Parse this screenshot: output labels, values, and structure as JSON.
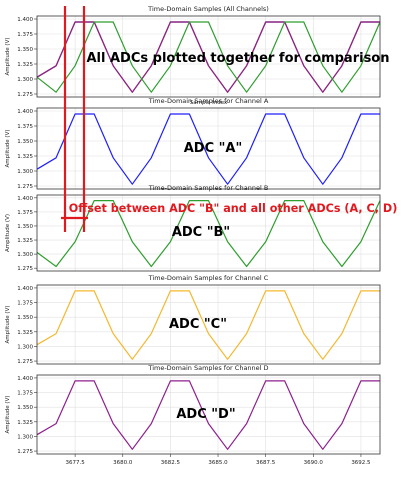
{
  "chart_data": [
    {
      "type": "line",
      "title": "Time-Domain Samples (All Channels)",
      "ylabel": "Amplitude (V)",
      "xlabel": "Sample Index",
      "ylim": [
        1.27,
        1.405
      ],
      "yticks": [
        1.275,
        1.3,
        1.325,
        1.35,
        1.375,
        1.4
      ],
      "ytick_labels": [
        "1.275",
        "1.300",
        "1.325",
        "1.350",
        "1.375",
        "1.400"
      ],
      "grid": true,
      "series": [
        {
          "color": "#1f1fff",
          "x": [
            3675.5,
            3676.5,
            3677.5,
            3678.5,
            3679.5,
            3680.5,
            3681.5,
            3682.5,
            3683.5,
            3684.5,
            3685.5,
            3686.5,
            3687.5,
            3688.5,
            3689.5,
            3690.5,
            3691.5,
            3692.5,
            3693.5
          ],
          "values": [
            1.303,
            1.322,
            1.395,
            1.395,
            1.322,
            1.278,
            1.322,
            1.395,
            1.395,
            1.322,
            1.278,
            1.322,
            1.395,
            1.395,
            1.322,
            1.278,
            1.322,
            1.395,
            1.395
          ]
        },
        {
          "color": "#d6a500",
          "x": [
            3675.5,
            3676.5,
            3677.5,
            3678.5,
            3679.5,
            3680.5,
            3681.5,
            3682.5,
            3683.5,
            3684.5,
            3685.5,
            3686.5,
            3687.5,
            3688.5,
            3689.5,
            3690.5,
            3691.5,
            3692.5,
            3693.5
          ],
          "values": [
            1.303,
            1.322,
            1.395,
            1.395,
            1.322,
            1.278,
            1.322,
            1.395,
            1.395,
            1.322,
            1.278,
            1.322,
            1.395,
            1.395,
            1.322,
            1.278,
            1.322,
            1.395,
            1.395
          ]
        },
        {
          "color": "#8e1f8e",
          "x": [
            3675.5,
            3676.5,
            3677.5,
            3678.5,
            3679.5,
            3680.5,
            3681.5,
            3682.5,
            3683.5,
            3684.5,
            3685.5,
            3686.5,
            3687.5,
            3688.5,
            3689.5,
            3690.5,
            3691.5,
            3692.5,
            3693.5
          ],
          "values": [
            1.303,
            1.322,
            1.395,
            1.395,
            1.322,
            1.278,
            1.322,
            1.395,
            1.395,
            1.322,
            1.278,
            1.322,
            1.395,
            1.395,
            1.322,
            1.278,
            1.322,
            1.395,
            1.395
          ]
        },
        {
          "color": "#2e9e2e",
          "x": [
            3675.5,
            3676.5,
            3677.5,
            3678.5,
            3679.5,
            3680.5,
            3681.5,
            3682.5,
            3683.5,
            3684.5,
            3685.5,
            3686.5,
            3687.5,
            3688.5,
            3689.5,
            3690.5,
            3691.5,
            3692.5,
            3693.5
          ],
          "values": [
            1.303,
            1.278,
            1.322,
            1.395,
            1.395,
            1.322,
            1.278,
            1.322,
            1.395,
            1.395,
            1.322,
            1.278,
            1.322,
            1.395,
            1.395,
            1.322,
            1.278,
            1.322,
            1.395
          ]
        }
      ],
      "annotation": "All ADCs plotted together for comparison"
    },
    {
      "type": "line",
      "title": "Time-Domain Samples for Channel A",
      "ylabel": "Amplitude (V)",
      "ylim": [
        1.27,
        1.405
      ],
      "yticks": [
        1.275,
        1.3,
        1.325,
        1.35,
        1.375,
        1.4
      ],
      "ytick_labels": [
        "1.275",
        "1.300",
        "1.325",
        "1.350",
        "1.375",
        "1.400"
      ],
      "grid": true,
      "series": [
        {
          "color": "#1f1fff",
          "x": [
            3675.5,
            3676.5,
            3677.5,
            3678.5,
            3679.5,
            3680.5,
            3681.5,
            3682.5,
            3683.5,
            3684.5,
            3685.5,
            3686.5,
            3687.5,
            3688.5,
            3689.5,
            3690.5,
            3691.5,
            3692.5,
            3693.5
          ],
          "values": [
            1.303,
            1.322,
            1.395,
            1.395,
            1.322,
            1.278,
            1.322,
            1.395,
            1.395,
            1.322,
            1.278,
            1.322,
            1.395,
            1.395,
            1.322,
            1.278,
            1.322,
            1.395,
            1.395
          ]
        }
      ],
      "annotation": "ADC \"A\""
    },
    {
      "type": "line",
      "title": "Time-Domain Samples for Channel B",
      "ylabel": "Amplitude (V)",
      "ylim": [
        1.27,
        1.405
      ],
      "yticks": [
        1.275,
        1.3,
        1.325,
        1.35,
        1.375,
        1.4
      ],
      "ytick_labels": [
        "1.275",
        "1.300",
        "1.325",
        "1.350",
        "1.375",
        "1.400"
      ],
      "grid": true,
      "series": [
        {
          "color": "#2e9e2e",
          "x": [
            3675.5,
            3676.5,
            3677.5,
            3678.5,
            3679.5,
            3680.5,
            3681.5,
            3682.5,
            3683.5,
            3684.5,
            3685.5,
            3686.5,
            3687.5,
            3688.5,
            3689.5,
            3690.5,
            3691.5,
            3692.5,
            3693.5
          ],
          "values": [
            1.303,
            1.278,
            1.322,
            1.395,
            1.395,
            1.322,
            1.278,
            1.322,
            1.395,
            1.395,
            1.322,
            1.278,
            1.322,
            1.395,
            1.395,
            1.322,
            1.278,
            1.322,
            1.395
          ]
        }
      ],
      "annotation": "ADC \"B\"",
      "annotation2": "Offset between ADC \"B\" and all other ADCs (A, C, D)"
    },
    {
      "type": "line",
      "title": "Time-Domain Samples for Channel C",
      "ylabel": "Amplitude (V)",
      "ylim": [
        1.27,
        1.405
      ],
      "yticks": [
        1.275,
        1.3,
        1.325,
        1.35,
        1.375,
        1.4
      ],
      "ytick_labels": [
        "1.275",
        "1.300",
        "1.325",
        "1.350",
        "1.375",
        "1.400"
      ],
      "grid": true,
      "series": [
        {
          "color": "#f5b82e",
          "x": [
            3675.5,
            3676.5,
            3677.5,
            3678.5,
            3679.5,
            3680.5,
            3681.5,
            3682.5,
            3683.5,
            3684.5,
            3685.5,
            3686.5,
            3687.5,
            3688.5,
            3689.5,
            3690.5,
            3691.5,
            3692.5,
            3693.5
          ],
          "values": [
            1.303,
            1.322,
            1.395,
            1.395,
            1.322,
            1.278,
            1.322,
            1.395,
            1.395,
            1.322,
            1.278,
            1.322,
            1.395,
            1.395,
            1.322,
            1.278,
            1.322,
            1.395,
            1.395
          ]
        }
      ],
      "annotation": "ADC \"C\""
    },
    {
      "type": "line",
      "title": "Time-Domain Samples for Channel D",
      "ylabel": "Amplitude (V)",
      "ylim": [
        1.27,
        1.405
      ],
      "yticks": [
        1.275,
        1.3,
        1.325,
        1.35,
        1.375,
        1.4
      ],
      "ytick_labels": [
        "1.275",
        "1.300",
        "1.325",
        "1.350",
        "1.375",
        "1.400"
      ],
      "xlim": [
        3675.5,
        3693.5
      ],
      "xticks": [
        3677.5,
        3680.0,
        3682.5,
        3685.0,
        3687.5,
        3690.0,
        3692.5
      ],
      "xtick_labels": [
        "3677.5",
        "3680.0",
        "3682.5",
        "3685.0",
        "3687.5",
        "3690.0",
        "3692.5"
      ],
      "grid": true,
      "series": [
        {
          "color": "#8e1f8e",
          "x": [
            3675.5,
            3676.5,
            3677.5,
            3678.5,
            3679.5,
            3680.5,
            3681.5,
            3682.5,
            3683.5,
            3684.5,
            3685.5,
            3686.5,
            3687.5,
            3688.5,
            3689.5,
            3690.5,
            3691.5,
            3692.5,
            3693.5
          ],
          "values": [
            1.303,
            1.322,
            1.395,
            1.395,
            1.322,
            1.278,
            1.322,
            1.395,
            1.395,
            1.322,
            1.278,
            1.322,
            1.395,
            1.395,
            1.322,
            1.278,
            1.322,
            1.395,
            1.395
          ]
        }
      ],
      "annotation": "ADC \"D\""
    }
  ],
  "colors": {
    "annotation_text": "#000000",
    "offset_text": "#e0191f",
    "marker_lines": "#e0191f",
    "grid": "#e0e0e0",
    "axes": "#333333"
  }
}
